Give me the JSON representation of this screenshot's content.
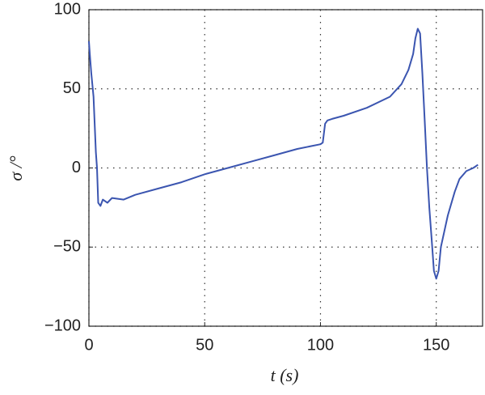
{
  "chart_data": {
    "type": "line",
    "xlabel": "t (s)",
    "ylabel": "σ /°",
    "x": [
      0,
      0.5,
      1,
      2,
      3,
      3.5,
      4,
      5,
      6,
      8,
      10,
      15,
      20,
      30,
      40,
      50,
      60,
      70,
      80,
      90,
      100,
      101,
      102,
      103,
      105,
      110,
      120,
      130,
      135,
      138,
      140,
      141,
      142,
      143,
      144,
      145,
      146,
      147,
      148,
      149,
      150,
      151,
      152,
      155,
      158,
      160,
      163,
      166,
      168
    ],
    "series": [
      {
        "name": "σ",
        "color": "#3b55b0",
        "values": [
          80,
          70,
          60,
          45,
          10,
          0,
          -22,
          -24,
          -20,
          -22,
          -19,
          -20,
          -17,
          -13,
          -9,
          -4,
          0,
          4,
          8,
          12,
          15,
          16,
          28,
          30,
          31,
          33,
          38,
          45,
          53,
          62,
          72,
          82,
          88,
          85,
          60,
          30,
          0,
          -25,
          -45,
          -65,
          -70,
          -65,
          -50,
          -30,
          -15,
          -7,
          -2,
          0,
          2
        ]
      }
    ],
    "xlim": [
      0,
      170
    ],
    "ylim": [
      -100,
      100
    ],
    "xticks": [
      0,
      50,
      100,
      150
    ],
    "yticks": [
      {
        "value": -100,
        "label": "−100"
      },
      {
        "value": -50,
        "label": "−50"
      },
      0,
      50,
      100
    ],
    "grid": true
  }
}
